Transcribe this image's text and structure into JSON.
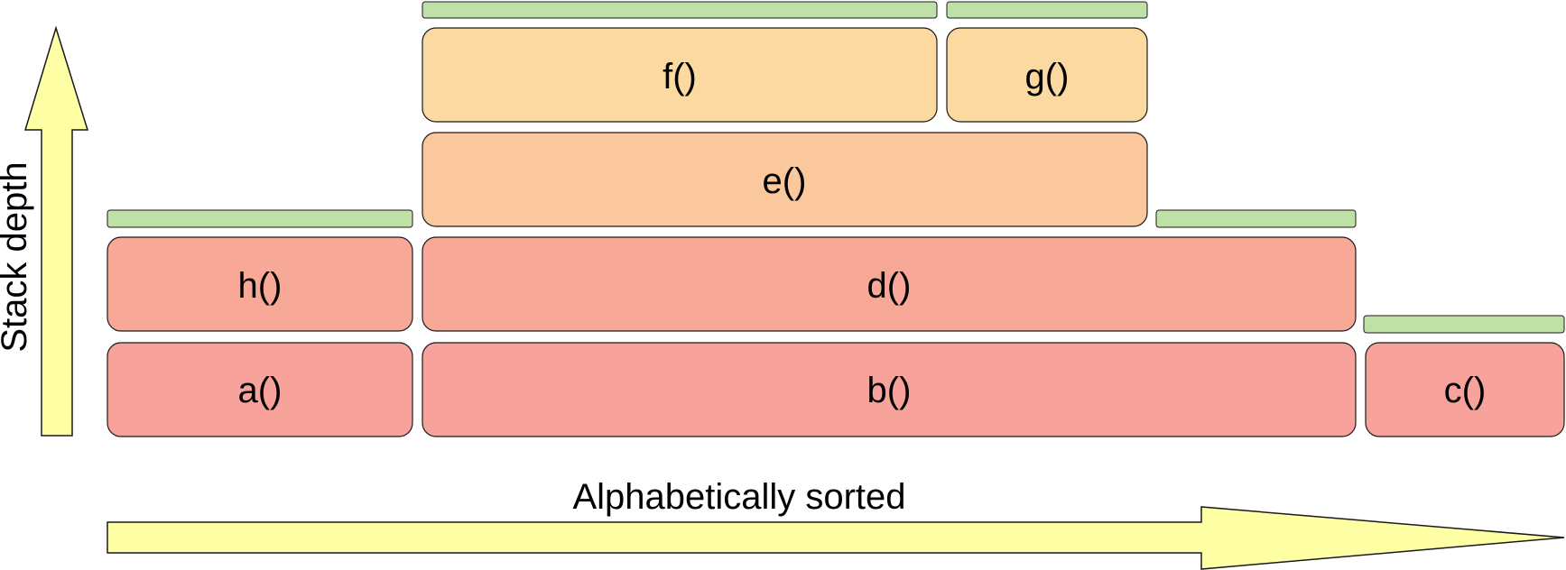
{
  "axes": {
    "x_label": "Alphabetically sorted",
    "y_label": "Stack depth"
  },
  "colors": {
    "arrow_fill": "#ffffa6",
    "outline": "#1a1a1a",
    "level0": "#f7a29a",
    "level1": "#f7a896",
    "level2": "#fbc89e",
    "level3": "#fdd9a2",
    "self_time_bar": "#bfe0a6"
  },
  "frames": [
    {
      "id": "a",
      "label": "a()",
      "depth": 0,
      "order": 0,
      "has_self_bar": false
    },
    {
      "id": "b",
      "label": "b()",
      "depth": 0,
      "order": 1,
      "has_self_bar": false
    },
    {
      "id": "c",
      "label": "c()",
      "depth": 0,
      "order": 2,
      "has_self_bar": true
    },
    {
      "id": "h",
      "label": "h()",
      "depth": 1,
      "order": 0,
      "has_self_bar": true
    },
    {
      "id": "d",
      "label": "d()",
      "depth": 1,
      "order": 1,
      "has_self_bar": true
    },
    {
      "id": "e",
      "label": "e()",
      "depth": 2,
      "order": 0,
      "has_self_bar": false
    },
    {
      "id": "f",
      "label": "f()",
      "depth": 3,
      "order": 0,
      "has_self_bar": true
    },
    {
      "id": "g",
      "label": "g()",
      "depth": 3,
      "order": 1,
      "has_self_bar": true
    }
  ]
}
